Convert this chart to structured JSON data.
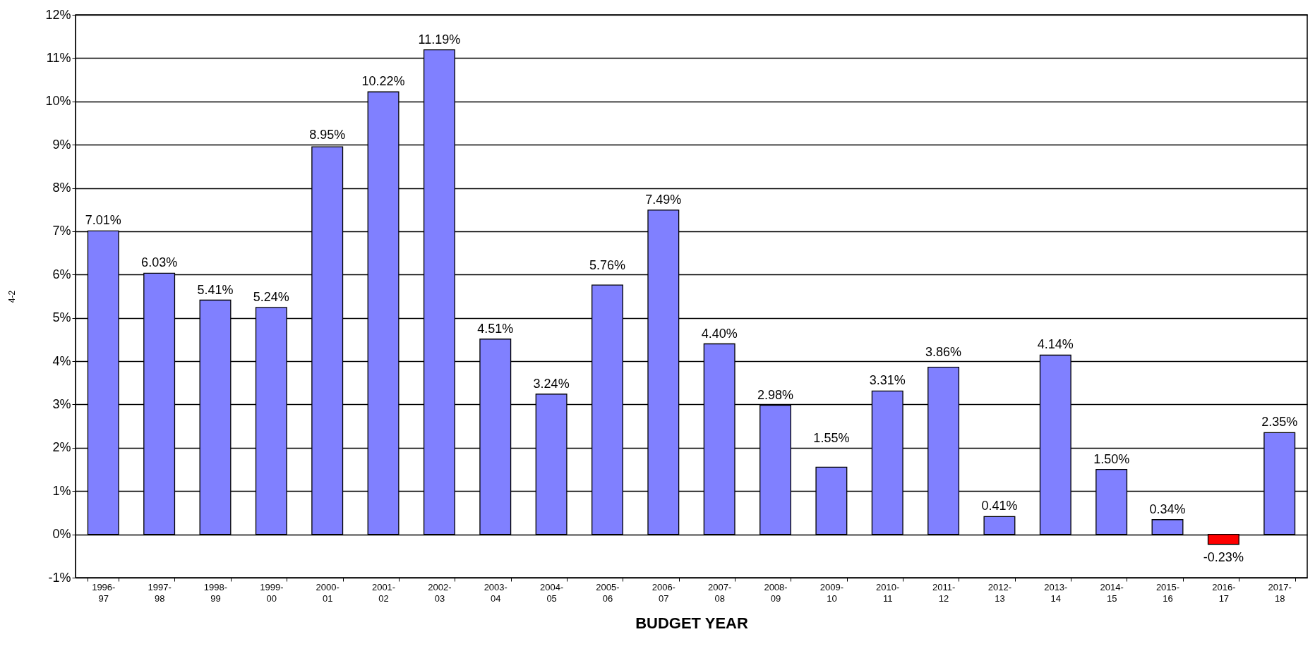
{
  "chart_data": {
    "type": "bar",
    "xlabel": "BUDGET YEAR",
    "ylabel": "4-2",
    "categories": [
      "1996-97",
      "1997-98",
      "1998-99",
      "1999-00",
      "2000-01",
      "2001-02",
      "2002-03",
      "2003-04",
      "2004-05",
      "2005-06",
      "2006-07",
      "2007-08",
      "2008-09",
      "2009-10",
      "2010-11",
      "2011-12",
      "2012-13",
      "2013-14",
      "2014-15",
      "2015-16",
      "2016-17",
      "2017-18"
    ],
    "values": [
      7.01,
      6.03,
      5.41,
      5.24,
      8.95,
      10.22,
      11.19,
      4.51,
      3.24,
      5.76,
      7.49,
      4.4,
      2.98,
      1.55,
      3.31,
      3.86,
      0.41,
      4.14,
      1.5,
      0.34,
      -0.23,
      2.35
    ],
    "value_labels": [
      "7.01%",
      "6.03%",
      "5.41%",
      "5.24%",
      "8.95%",
      "10.22%",
      "11.19%",
      "4.51%",
      "3.24%",
      "5.76%",
      "7.49%",
      "4.40%",
      "2.98%",
      "1.55%",
      "3.31%",
      "3.86%",
      "0.41%",
      "4.14%",
      "1.50%",
      "0.34%",
      "-0.23%",
      "2.35%"
    ],
    "colors": [
      "#8080ff",
      "#8080ff",
      "#8080ff",
      "#8080ff",
      "#8080ff",
      "#8080ff",
      "#8080ff",
      "#8080ff",
      "#8080ff",
      "#8080ff",
      "#8080ff",
      "#8080ff",
      "#8080ff",
      "#8080ff",
      "#8080ff",
      "#8080ff",
      "#8080ff",
      "#8080ff",
      "#8080ff",
      "#8080ff",
      "#ff0000",
      "#8080ff"
    ],
    "ylim": [
      -1,
      12
    ],
    "yticks": [
      {
        "value": -1,
        "label": "-1%"
      },
      {
        "value": 0,
        "label": "0%"
      },
      {
        "value": 1,
        "label": "1%"
      },
      {
        "value": 2,
        "label": "2%"
      },
      {
        "value": 3,
        "label": "3%"
      },
      {
        "value": 4,
        "label": "4%"
      },
      {
        "value": 5,
        "label": "5%"
      },
      {
        "value": 6,
        "label": "6%"
      },
      {
        "value": 7,
        "label": "7%"
      },
      {
        "value": 8,
        "label": "8%"
      },
      {
        "value": 9,
        "label": "9%"
      },
      {
        "value": 10,
        "label": "10%"
      },
      {
        "value": 11,
        "label": "11%"
      },
      {
        "value": 12,
        "label": "12%"
      }
    ],
    "grid": "y"
  }
}
